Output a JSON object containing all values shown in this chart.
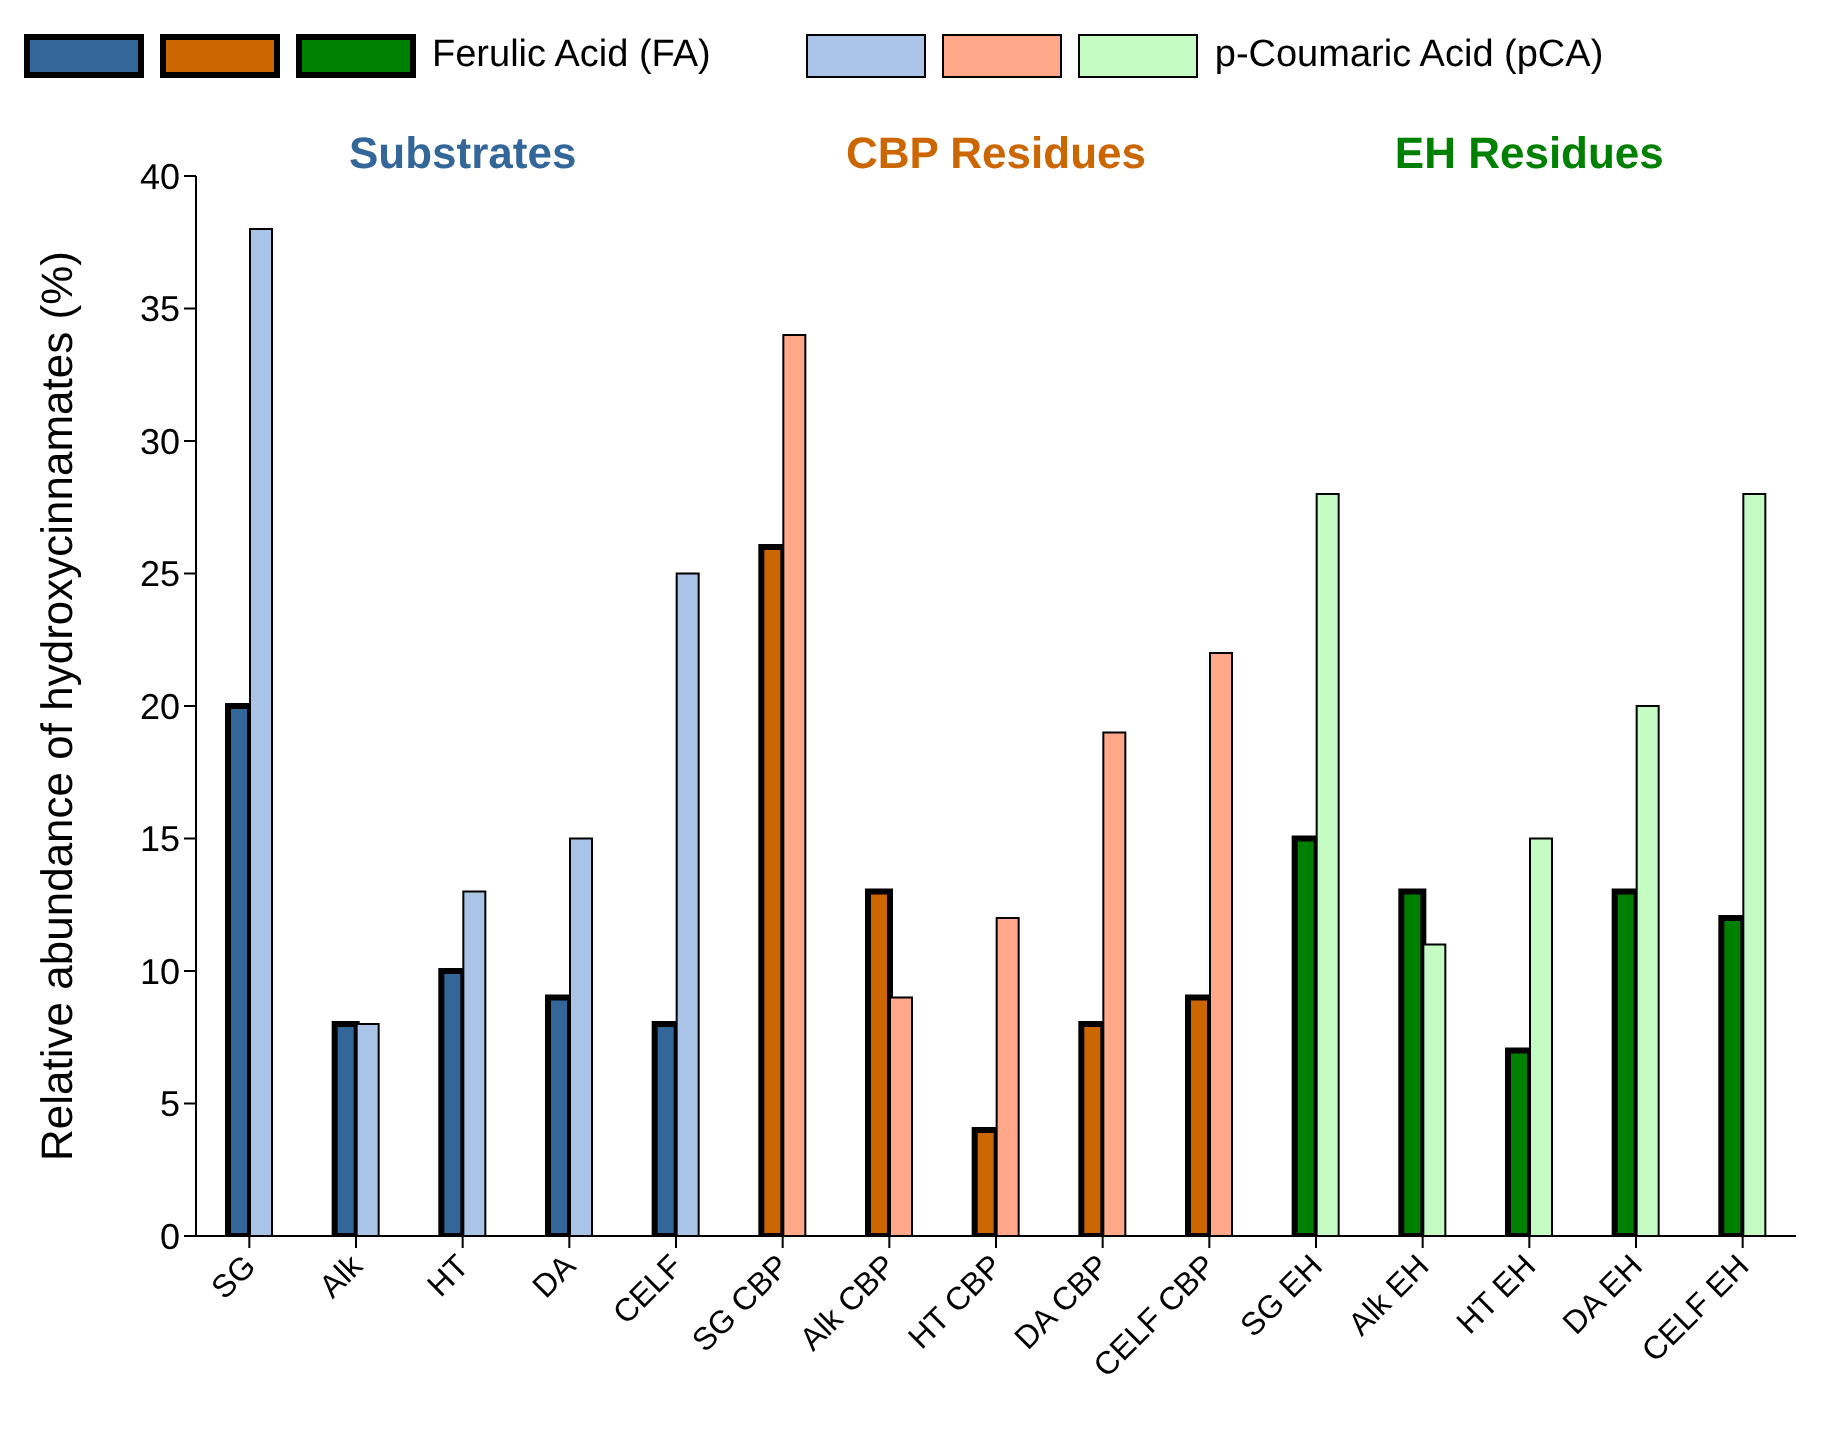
{
  "chart_data": {
    "type": "bar",
    "ylabel": "Relative abundance of hydroxycinnamates (%)",
    "categories": [
      "SG",
      "Alk",
      "HT",
      "DA",
      "CELF",
      "SG CBP",
      "Alk CBP",
      "HT CBP",
      "DA CBP",
      "CELF CBP",
      "SG EH",
      "Alk EH",
      "HT EH",
      "DA EH",
      "CELF EH"
    ],
    "series": [
      {
        "name": "Ferulic Acid (FA)",
        "colors": [
          "#336699",
          "#336699",
          "#336699",
          "#336699",
          "#336699",
          "#cc6600",
          "#cc6600",
          "#cc6600",
          "#cc6600",
          "#cc6600",
          "#008000",
          "#008000",
          "#008000",
          "#008000",
          "#008000"
        ],
        "values": [
          20,
          8,
          10,
          9,
          8,
          26,
          13,
          4,
          8,
          9,
          15,
          13,
          7,
          13,
          12
        ]
      },
      {
        "name": "p-Coumaric Acid (pCA)",
        "colors": [
          "#a9c4e6",
          "#a9c4e6",
          "#a9c4e6",
          "#a9c4e6",
          "#a9c4e6",
          "#ffa98a",
          "#ffa98a",
          "#ffa98a",
          "#ffa98a",
          "#ffa98a",
          "#c4fcc4",
          "#c4fcc4",
          "#c4fcc4",
          "#c4fcc4",
          "#c4fcc4"
        ],
        "values": [
          38,
          8,
          13,
          15,
          25,
          34,
          9,
          12,
          19,
          22,
          28,
          11,
          15,
          20,
          28
        ]
      }
    ],
    "annotations": [
      "Substrates",
      "CBP Residues",
      "EH Residues"
    ],
    "ylim": [
      0,
      40
    ],
    "yticks": [
      0,
      5,
      10,
      15,
      20,
      25,
      30,
      35,
      40
    ],
    "grid": false,
    "legend": "top"
  }
}
